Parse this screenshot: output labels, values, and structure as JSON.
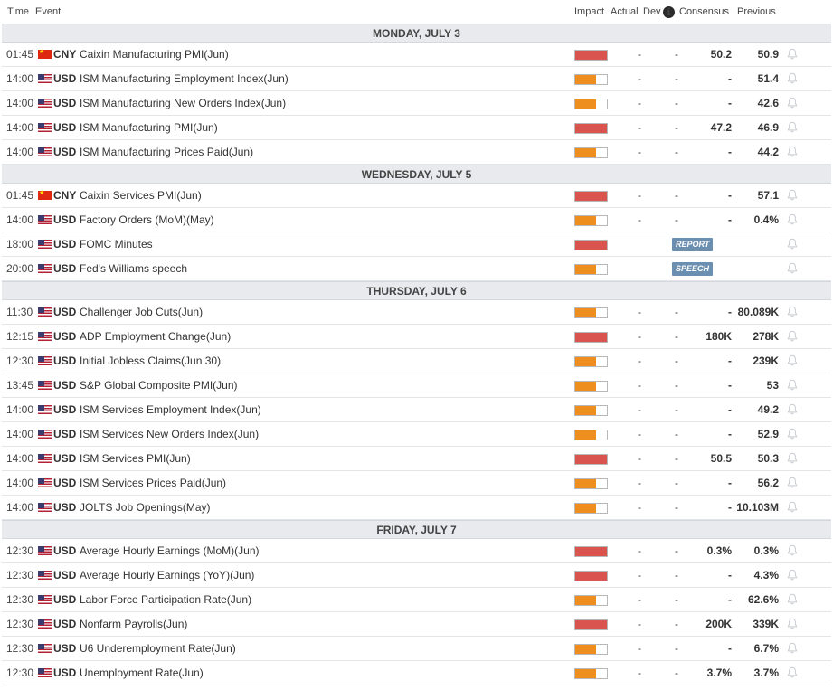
{
  "colors": {
    "high": "#d9534f",
    "medium": "#ee8e1f",
    "tag_bg": "#6b8fb0",
    "day_bg": "#e8eaed"
  },
  "header": {
    "time": "Time",
    "event": "Event",
    "impact": "Impact",
    "actual": "Actual",
    "dev": "Dev",
    "info": "i",
    "consensus": "Consensus",
    "previous": "Previous"
  },
  "days": [
    {
      "label": "MONDAY, JULY 3",
      "events": [
        {
          "time": "01:45",
          "flag": "cn",
          "cur": "CNY",
          "event": "Caixin Manufacturing PMI(Jun)",
          "impact": "high",
          "actual": "-",
          "dev": "-",
          "consensus": "50.2",
          "previous": "50.9"
        },
        {
          "time": "14:00",
          "flag": "us",
          "cur": "USD",
          "event": "ISM Manufacturing Employment Index(Jun)",
          "impact": "medium",
          "actual": "-",
          "dev": "-",
          "consensus": "-",
          "previous": "51.4"
        },
        {
          "time": "14:00",
          "flag": "us",
          "cur": "USD",
          "event": "ISM Manufacturing New Orders Index(Jun)",
          "impact": "medium",
          "actual": "-",
          "dev": "-",
          "consensus": "-",
          "previous": "42.6"
        },
        {
          "time": "14:00",
          "flag": "us",
          "cur": "USD",
          "event": "ISM Manufacturing PMI(Jun)",
          "impact": "high",
          "actual": "-",
          "dev": "-",
          "consensus": "47.2",
          "previous": "46.9"
        },
        {
          "time": "14:00",
          "flag": "us",
          "cur": "USD",
          "event": "ISM Manufacturing Prices Paid(Jun)",
          "impact": "medium",
          "actual": "-",
          "dev": "-",
          "consensus": "-",
          "previous": "44.2"
        }
      ]
    },
    {
      "label": "WEDNESDAY, JULY 5",
      "events": [
        {
          "time": "01:45",
          "flag": "cn",
          "cur": "CNY",
          "event": "Caixin Services PMI(Jun)",
          "impact": "high",
          "actual": "-",
          "dev": "-",
          "consensus": "-",
          "previous": "57.1"
        },
        {
          "time": "14:00",
          "flag": "us",
          "cur": "USD",
          "event": "Factory Orders (MoM)(May)",
          "impact": "medium",
          "actual": "-",
          "dev": "-",
          "consensus": "-",
          "previous": "0.4%"
        },
        {
          "time": "18:00",
          "flag": "us",
          "cur": "USD",
          "event": "FOMC Minutes",
          "impact": "high",
          "tag": "REPORT"
        },
        {
          "time": "20:00",
          "flag": "us",
          "cur": "USD",
          "event": "Fed's Williams speech",
          "impact": "medium",
          "tag": "SPEECH"
        }
      ]
    },
    {
      "label": "THURSDAY, JULY 6",
      "events": [
        {
          "time": "11:30",
          "flag": "us",
          "cur": "USD",
          "event": "Challenger Job Cuts(Jun)",
          "impact": "medium",
          "actual": "-",
          "dev": "-",
          "consensus": "-",
          "previous": "80.089K"
        },
        {
          "time": "12:15",
          "flag": "us",
          "cur": "USD",
          "event": "ADP Employment Change(Jun)",
          "impact": "high",
          "actual": "-",
          "dev": "-",
          "consensus": "180K",
          "previous": "278K"
        },
        {
          "time": "12:30",
          "flag": "us",
          "cur": "USD",
          "event": "Initial Jobless Claims(Jun 30)",
          "impact": "medium",
          "actual": "-",
          "dev": "-",
          "consensus": "-",
          "previous": "239K"
        },
        {
          "time": "13:45",
          "flag": "us",
          "cur": "USD",
          "event": "S&P Global Composite PMI(Jun)",
          "impact": "medium",
          "actual": "-",
          "dev": "-",
          "consensus": "-",
          "previous": "53"
        },
        {
          "time": "14:00",
          "flag": "us",
          "cur": "USD",
          "event": "ISM Services Employment Index(Jun)",
          "impact": "medium",
          "actual": "-",
          "dev": "-",
          "consensus": "-",
          "previous": "49.2"
        },
        {
          "time": "14:00",
          "flag": "us",
          "cur": "USD",
          "event": "ISM Services New Orders Index(Jun)",
          "impact": "medium",
          "actual": "-",
          "dev": "-",
          "consensus": "-",
          "previous": "52.9"
        },
        {
          "time": "14:00",
          "flag": "us",
          "cur": "USD",
          "event": "ISM Services PMI(Jun)",
          "impact": "high",
          "actual": "-",
          "dev": "-",
          "consensus": "50.5",
          "previous": "50.3"
        },
        {
          "time": "14:00",
          "flag": "us",
          "cur": "USD",
          "event": "ISM Services Prices Paid(Jun)",
          "impact": "medium",
          "actual": "-",
          "dev": "-",
          "consensus": "-",
          "previous": "56.2"
        },
        {
          "time": "14:00",
          "flag": "us",
          "cur": "USD",
          "event": "JOLTS Job Openings(May)",
          "impact": "medium",
          "actual": "-",
          "dev": "-",
          "consensus": "-",
          "previous": "10.103M"
        }
      ]
    },
    {
      "label": "FRIDAY, JULY 7",
      "events": [
        {
          "time": "12:30",
          "flag": "us",
          "cur": "USD",
          "event": "Average Hourly Earnings (MoM)(Jun)",
          "impact": "high",
          "actual": "-",
          "dev": "-",
          "consensus": "0.3%",
          "previous": "0.3%"
        },
        {
          "time": "12:30",
          "flag": "us",
          "cur": "USD",
          "event": "Average Hourly Earnings (YoY)(Jun)",
          "impact": "high",
          "actual": "-",
          "dev": "-",
          "consensus": "-",
          "previous": "4.3%"
        },
        {
          "time": "12:30",
          "flag": "us",
          "cur": "USD",
          "event": "Labor Force Participation Rate(Jun)",
          "impact": "medium",
          "actual": "-",
          "dev": "-",
          "consensus": "-",
          "previous": "62.6%"
        },
        {
          "time": "12:30",
          "flag": "us",
          "cur": "USD",
          "event": "Nonfarm Payrolls(Jun)",
          "impact": "high",
          "actual": "-",
          "dev": "-",
          "consensus": "200K",
          "previous": "339K"
        },
        {
          "time": "12:30",
          "flag": "us",
          "cur": "USD",
          "event": "U6 Underemployment Rate(Jun)",
          "impact": "medium",
          "actual": "-",
          "dev": "-",
          "consensus": "-",
          "previous": "6.7%"
        },
        {
          "time": "12:30",
          "flag": "us",
          "cur": "USD",
          "event": "Unemployment Rate(Jun)",
          "impact": "medium",
          "actual": "-",
          "dev": "-",
          "consensus": "3.7%",
          "previous": "3.7%"
        }
      ]
    }
  ]
}
